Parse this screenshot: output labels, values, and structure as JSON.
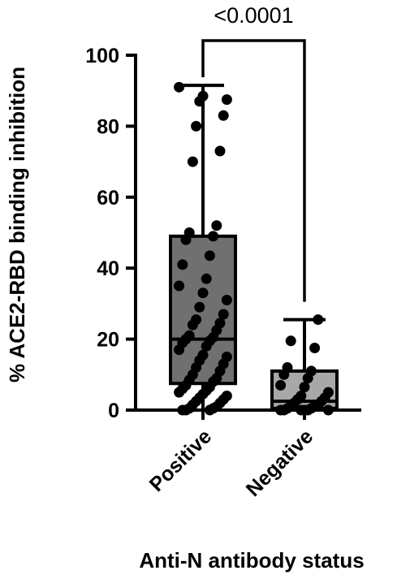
{
  "chart_data": {
    "type": "box",
    "title": "",
    "xlabel": "Anti-N antibody status",
    "ylabel": "% ACE2-RBD binding inhibition",
    "ylim": [
      0,
      100
    ],
    "yticks": [
      0,
      20,
      40,
      60,
      80,
      100
    ],
    "grid": false,
    "legend": "none",
    "categories": [
      "Positive",
      "Negative"
    ],
    "series": [
      {
        "category": "Positive",
        "color": "#707070",
        "min": 0,
        "q1": 7.5,
        "median": 20,
        "q3": 49,
        "max": 91.5,
        "points": [
          91,
          88.5,
          87.5,
          87,
          83,
          80,
          73,
          70,
          52,
          50,
          49,
          48,
          43.5,
          41,
          37,
          35,
          33,
          31,
          29,
          27,
          25.5,
          24.5,
          24,
          22.5,
          21,
          20.5,
          20,
          19.5,
          19,
          18,
          17,
          15.5,
          15,
          14,
          13,
          12,
          11,
          10,
          9,
          8.5,
          8,
          7,
          6.5,
          6,
          5.5,
          5,
          4.5,
          4,
          3.5,
          3,
          2.5,
          2,
          1.5,
          1,
          0.5,
          0.5,
          0,
          0,
          0
        ]
      },
      {
        "category": "Negative",
        "color": "#a8a8aa",
        "min": 0,
        "q1": 0.5,
        "median": 2.5,
        "q3": 11,
        "max": 25.5,
        "points": [
          25.5,
          19.5,
          17.5,
          12,
          11,
          10,
          9,
          7,
          6.5,
          5,
          4,
          3.5,
          3,
          2.5,
          2,
          1.5,
          1,
          1,
          0.5,
          0.5,
          0,
          0,
          0,
          0,
          0,
          0
        ]
      }
    ],
    "annotations": [
      {
        "type": "bracket",
        "between": [
          "Positive",
          "Negative"
        ],
        "text": "<0.0001"
      }
    ]
  }
}
